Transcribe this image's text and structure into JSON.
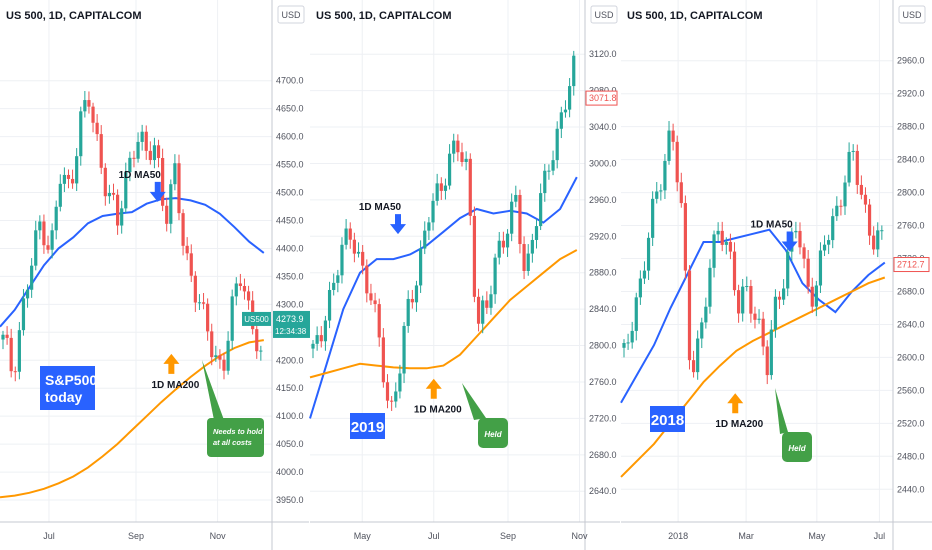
{
  "colors": {
    "up": "#26a69a",
    "down": "#ef5350",
    "ma50": "#2962ff",
    "ma200": "#ff9800",
    "tag_blue": "#2962ff",
    "tag_green": "#43a047",
    "grid": "#eef0f4",
    "axis_text": "#50535e"
  },
  "chart_data": [
    {
      "type": "candlestick",
      "title": "US 500, 1D, CAPITALCOM",
      "currency": "USD",
      "ylim": [
        3925,
        4780
      ],
      "y_ticks": [
        "4700.0",
        "4650.0",
        "4600.0",
        "4550.0",
        "4500.0",
        "4450.0",
        "4400.0",
        "4350.0",
        "4300.0",
        "4250.0",
        "4200.0",
        "4150.0",
        "4100.0",
        "4050.0",
        "4000.0",
        "3950.0"
      ],
      "x_ticks": [
        "Jul",
        "Sep",
        "Nov"
      ],
      "symbol_tag": "US500",
      "last_price": "4273.9",
      "countdown": "12:34:38",
      "series": [
        {
          "name": "1D MA50",
          "values": [
            4260,
            4290,
            4330,
            4370,
            4400,
            4420,
            4445,
            4458,
            4462,
            4465,
            4480,
            4488,
            4490,
            4486,
            4478,
            4462,
            4438,
            4412,
            4392
          ]
        },
        {
          "name": "1D MA200",
          "values": [
            3955,
            3958,
            3963,
            3970,
            3980,
            3992,
            4008,
            4028,
            4050,
            4075,
            4100,
            4125,
            4148,
            4170,
            4190,
            4208,
            4222,
            4232,
            4236
          ]
        }
      ],
      "annotations": [
        {
          "text": "1D MA50",
          "x_frac": 0.58,
          "price": 4512
        },
        {
          "text": "1D MA200",
          "x_frac": 0.63,
          "price": 4165
        },
        {
          "text": "S&P500 today",
          "style": "blue-box"
        },
        {
          "text": "Needs to hold at all costs",
          "style": "green-callout"
        }
      ]
    },
    {
      "type": "candlestick",
      "title": "US 500, 1D, CAPITALCOM",
      "currency": "USD",
      "ylim": [
        2615,
        3140
      ],
      "y_ticks": [
        "3120.0",
        "3080.0",
        "3040.0",
        "3000.0",
        "2960.0",
        "2920.0",
        "2880.0",
        "2840.0",
        "2800.0",
        "2760.0",
        "2720.0",
        "2680.0",
        "2640.0"
      ],
      "x_ticks": [
        "May",
        "Jul",
        "Sep",
        "Nov"
      ],
      "last_price": "3071.8",
      "series": [
        {
          "name": "1D MA50",
          "values": [
            2720,
            2780,
            2840,
            2880,
            2895,
            2895,
            2900,
            2910,
            2925,
            2940,
            2950,
            2945,
            2948,
            2945,
            2935,
            2950,
            2985
          ]
        },
        {
          "name": "1D MA200",
          "values": [
            2765,
            2770,
            2775,
            2780,
            2778,
            2776,
            2775,
            2775,
            2778,
            2790,
            2810,
            2830,
            2850,
            2865,
            2880,
            2895,
            2905
          ]
        }
      ],
      "annotations": [
        {
          "text": "1D MA50",
          "x_frac": 0.32,
          "price": 2940
        },
        {
          "text": "1D MA200",
          "x_frac": 0.45,
          "price": 2735
        },
        {
          "text": "2019",
          "style": "blue-box"
        },
        {
          "text": "Held",
          "style": "green-callout"
        }
      ]
    },
    {
      "type": "candlestick",
      "title": "US 500, 1D, CAPITALCOM",
      "currency": "USD",
      "ylim": [
        2410,
        2990
      ],
      "y_ticks": [
        "2960.0",
        "2920.0",
        "2880.0",
        "2840.0",
        "2800.0",
        "2760.0",
        "2720.0",
        "2680.0",
        "2640.0",
        "2600.0",
        "2560.0",
        "2520.0",
        "2480.0",
        "2440.0"
      ],
      "x_ticks": [
        "2018",
        "Mar",
        "May",
        "Jul"
      ],
      "last_price": "2712.7",
      "series": [
        {
          "name": "1D MA50",
          "values": [
            2545,
            2580,
            2615,
            2660,
            2700,
            2740,
            2740,
            2745,
            2750,
            2755,
            2730,
            2690,
            2670,
            2655,
            2680,
            2700,
            2715
          ]
        },
        {
          "name": "1D MA200",
          "values": [
            2455,
            2475,
            2495,
            2520,
            2545,
            2570,
            2590,
            2608,
            2620,
            2630,
            2640,
            2650,
            2660,
            2670,
            2680,
            2690,
            2697
          ]
        }
      ],
      "annotations": [
        {
          "text": "1D MA50",
          "x_frac": 0.62,
          "price": 2748
        },
        {
          "text": "1D MA200",
          "x_frac": 0.42,
          "price": 2525
        },
        {
          "text": "2018",
          "style": "blue-box"
        },
        {
          "text": "Held",
          "style": "green-callout"
        }
      ]
    }
  ]
}
